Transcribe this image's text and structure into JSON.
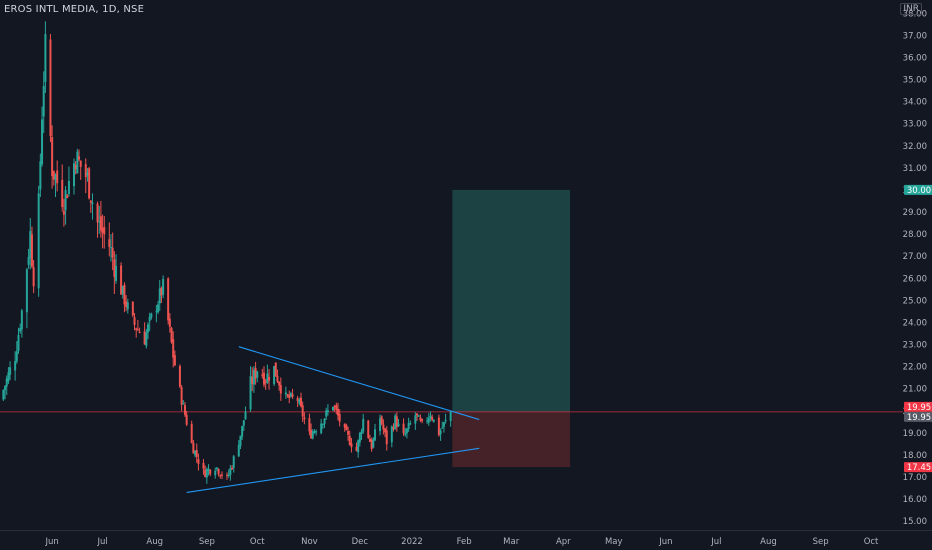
{
  "header": {
    "symbol_title": "EROS INTL MEDIA, 1D, NSE",
    "currency": "INR"
  },
  "colors": {
    "background": "#131722",
    "up": "#26a69a",
    "down": "#ef5350",
    "trendline": "#2196f3",
    "target_zone": "#1e4a4a",
    "stop_zone": "#4a2429",
    "price_line": "#f23645"
  },
  "chart_data": {
    "type": "candlestick",
    "title": "EROS INTL MEDIA, 1D, NSE",
    "y_ticks": [
      "15.00",
      "16.00",
      "17.00",
      "18.00",
      "19.00",
      "20.00",
      "21.00",
      "22.00",
      "23.00",
      "24.00",
      "25.00",
      "26.00",
      "27.00",
      "28.00",
      "29.00",
      "30.00",
      "31.00",
      "32.00",
      "33.00",
      "34.00",
      "35.00",
      "36.00",
      "37.00",
      "38.00"
    ],
    "x_ticks": [
      "Jun",
      "Jul",
      "Aug",
      "Sep",
      "Oct",
      "Nov",
      "Dec",
      "2022",
      "Feb",
      "Mar",
      "Apr",
      "May",
      "Jun",
      "Jul",
      "Aug",
      "Sep",
      "Oct"
    ],
    "ylim": [
      14.6,
      38.6
    ],
    "x_domain": [
      "2021-05-01",
      "2022-10-20"
    ],
    "price_labels": [
      {
        "text": "30.00",
        "price": 30.0,
        "role": "target"
      },
      {
        "text": "19.95",
        "price": 19.95,
        "role": "last"
      },
      {
        "text": "19.95",
        "price": 19.95,
        "role": "current"
      },
      {
        "text": "17.45",
        "price": 17.45,
        "role": "stop"
      }
    ],
    "position": {
      "entry": 19.95,
      "target": 30.0,
      "stop": 17.45,
      "start": "2022-01-25",
      "end": "2022-04-05"
    },
    "trendlines": [
      {
        "name": "upper",
        "from": [
          "2021-09-20",
          22.9
        ],
        "to": [
          "2022-02-10",
          19.6
        ]
      },
      {
        "name": "lower",
        "from": [
          "2021-08-20",
          16.3
        ],
        "to": [
          "2022-02-10",
          18.3
        ]
      }
    ],
    "anchors": [
      [
        "2021-05-01",
        20.5
      ],
      [
        "2021-05-10",
        22.5
      ],
      [
        "2021-05-14",
        24.5
      ],
      [
        "2021-05-19",
        28.0
      ],
      [
        "2021-05-22",
        25.0
      ],
      [
        "2021-05-26",
        33.5
      ],
      [
        "2021-05-28",
        36.5
      ],
      [
        "2021-06-01",
        31.0
      ],
      [
        "2021-06-08",
        29.5
      ],
      [
        "2021-06-15",
        31.5
      ],
      [
        "2021-06-22",
        30.5
      ],
      [
        "2021-06-28",
        28.5
      ],
      [
        "2021-07-05",
        27.5
      ],
      [
        "2021-07-12",
        25.5
      ],
      [
        "2021-07-19",
        24.0
      ],
      [
        "2021-07-26",
        23.3
      ],
      [
        "2021-08-02",
        24.8
      ],
      [
        "2021-08-06",
        25.6
      ],
      [
        "2021-08-12",
        22.5
      ],
      [
        "2021-08-17",
        20.5
      ],
      [
        "2021-08-23",
        18.5
      ],
      [
        "2021-08-30",
        17.2
      ],
      [
        "2021-09-06",
        17.5
      ],
      [
        "2021-09-13",
        16.9
      ],
      [
        "2021-09-17",
        17.8
      ],
      [
        "2021-09-22",
        19.2
      ],
      [
        "2021-09-27",
        21.2
      ],
      [
        "2021-10-01",
        21.9
      ],
      [
        "2021-10-06",
        21.5
      ],
      [
        "2021-10-11",
        21.9
      ],
      [
        "2021-10-18",
        20.6
      ],
      [
        "2021-10-25",
        20.5
      ],
      [
        "2021-11-01",
        18.9
      ],
      [
        "2021-11-08",
        19.5
      ],
      [
        "2021-11-15",
        20.3
      ],
      [
        "2021-11-22",
        19.0
      ],
      [
        "2021-11-29",
        18.2
      ],
      [
        "2021-12-03",
        19.6
      ],
      [
        "2021-12-08",
        18.4
      ],
      [
        "2021-12-13",
        19.7
      ],
      [
        "2021-12-17",
        18.6
      ],
      [
        "2021-12-22",
        19.6
      ],
      [
        "2021-12-27",
        18.8
      ],
      [
        "2022-01-03",
        19.8
      ],
      [
        "2022-01-07",
        19.3
      ],
      [
        "2022-01-12",
        19.9
      ],
      [
        "2022-01-17",
        19.0
      ],
      [
        "2022-01-21",
        19.5
      ],
      [
        "2022-01-24",
        19.95
      ]
    ]
  }
}
